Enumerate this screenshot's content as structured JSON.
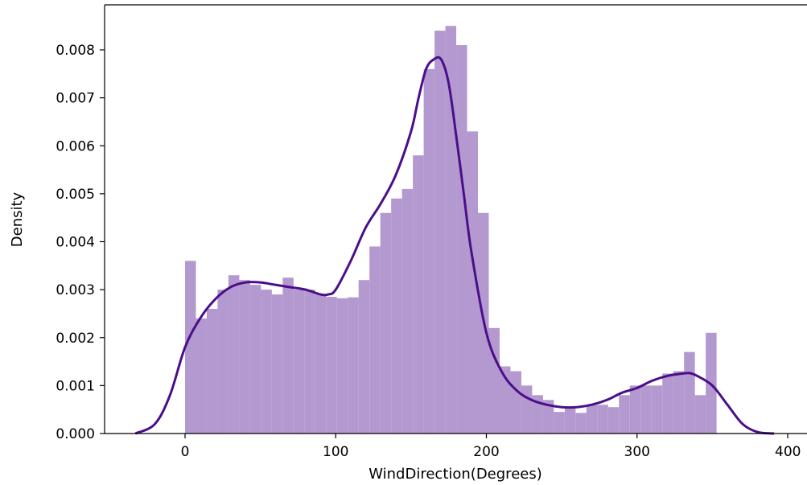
{
  "chart_data": {
    "type": "bar",
    "title": "",
    "xlabel": "WindDirection(Degrees)",
    "ylabel": "Density",
    "xlim": [
      -55,
      400
    ],
    "ylim": [
      0,
      0.0085
    ],
    "xticks": [
      "0",
      "100",
      "200",
      "300",
      "400"
    ],
    "yticks": [
      "0.000",
      "0.001",
      "0.002",
      "0.003",
      "0.004",
      "0.005",
      "0.006",
      "0.007",
      "0.008"
    ],
    "grid": false,
    "bin_width": 7.2,
    "bins_start": [
      0,
      7.2,
      14.4,
      21.6,
      28.8,
      36,
      43.2,
      50.4,
      57.6,
      64.8,
      72,
      79.2,
      86.4,
      93.6,
      100.8,
      108,
      115.2,
      122.4,
      129.6,
      136.8,
      144,
      151.2,
      158.4,
      165.6,
      172.8,
      180,
      187.2,
      194.4,
      201.6,
      208.8,
      216,
      223.2,
      230.4,
      237.6,
      244.8,
      252,
      259.2,
      266.4,
      273.6,
      280.8,
      288,
      295.2,
      302.4,
      309.6,
      316.8,
      324,
      331.2,
      338.4,
      345.6,
      352.8
    ],
    "bin_values": [
      0.0036,
      0.0024,
      0.0026,
      0.003,
      0.0033,
      0.0032,
      0.0031,
      0.003,
      0.0029,
      0.00325,
      0.003,
      0.003,
      0.0029,
      0.00285,
      0.00282,
      0.00284,
      0.0032,
      0.0039,
      0.0046,
      0.0049,
      0.0051,
      0.0058,
      0.0076,
      0.0084,
      0.0085,
      0.0081,
      0.0063,
      0.0046,
      0.0022,
      0.0014,
      0.0013,
      0.001,
      0.0008,
      0.0007,
      0.00045,
      0.00055,
      0.00043,
      0.0006,
      0.0006,
      0.00055,
      0.0008,
      0.001,
      0.001,
      0.001,
      0.00125,
      0.0013,
      0.0017,
      0.0008,
      0.0021,
      0.0
    ],
    "kde": {
      "x": [
        -33,
        -20,
        -10,
        0,
        10,
        20,
        30,
        40,
        50,
        60,
        70,
        80,
        90,
        95,
        100,
        110,
        120,
        130,
        140,
        150,
        155,
        160,
        165,
        170,
        175,
        180,
        185,
        190,
        200,
        210,
        220,
        230,
        240,
        250,
        260,
        270,
        280,
        290,
        300,
        310,
        320,
        330,
        335,
        340,
        350,
        360,
        370,
        380,
        391
      ],
      "y": [
        0.0,
        0.0002,
        0.0008,
        0.0018,
        0.0024,
        0.0028,
        0.00305,
        0.00315,
        0.00315,
        0.0031,
        0.00305,
        0.003,
        0.0029,
        0.0029,
        0.003,
        0.0036,
        0.0043,
        0.0048,
        0.0054,
        0.0063,
        0.007,
        0.0076,
        0.0078,
        0.0078,
        0.0073,
        0.0062,
        0.005,
        0.0038,
        0.0021,
        0.0013,
        0.0009,
        0.0007,
        0.0006,
        0.00055,
        0.00055,
        0.0006,
        0.0007,
        0.00085,
        0.00095,
        0.0011,
        0.0012,
        0.00125,
        0.00126,
        0.0012,
        0.001,
        0.0006,
        0.0002,
        3e-05,
        0.0
      ]
    },
    "colors": {
      "bars": "#b399cf",
      "kde_line": "#4b0e8a"
    }
  }
}
